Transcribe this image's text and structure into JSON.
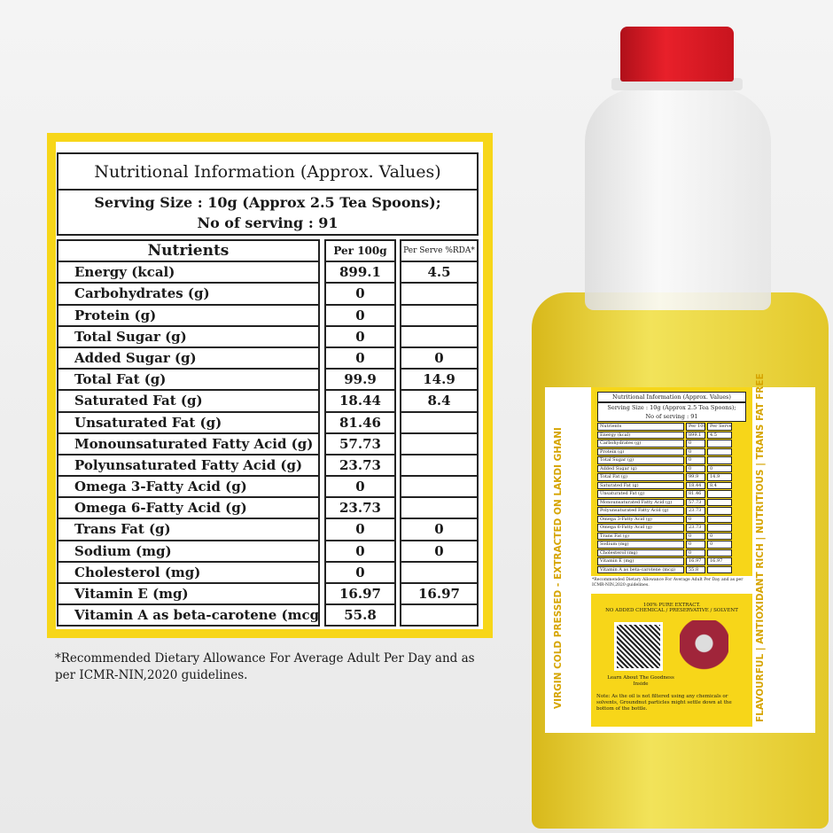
{
  "panel": {
    "title": "Nutritional Information (Approx. Values)",
    "serving_line1": "Serving Size : 10g (Approx 2.5 Tea Spoons);",
    "serving_line2": "No of serving : 91",
    "headers": [
      "Nutrients",
      "Per 100g",
      "Per Serve %RDA*"
    ],
    "rows": [
      [
        "Energy (kcal)",
        "899.1",
        "4.5"
      ],
      [
        "Carbohydrates (g)",
        "0",
        ""
      ],
      [
        "Protein (g)",
        "0",
        ""
      ],
      [
        "Total Sugar (g)",
        "0",
        ""
      ],
      [
        "Added Sugar (g)",
        "0",
        "0"
      ],
      [
        "Total Fat (g)",
        "99.9",
        "14.9"
      ],
      [
        "Saturated Fat (g)",
        "18.44",
        "8.4"
      ],
      [
        "Unsaturated Fat (g)",
        "81.46",
        ""
      ],
      [
        "Monounsaturated Fatty Acid (g)",
        "57.73",
        ""
      ],
      [
        "Polyunsaturated Fatty Acid (g)",
        "23.73",
        ""
      ],
      [
        "Omega 3-Fatty Acid (g)",
        "0",
        ""
      ],
      [
        "Omega 6-Fatty Acid (g)",
        "23.73",
        ""
      ],
      [
        "Trans Fat (g)",
        "0",
        "0"
      ],
      [
        "Sodium (mg)",
        "0",
        "0"
      ],
      [
        "Cholesterol (mg)",
        "0",
        ""
      ],
      [
        "Vitamin E (mg)",
        "16.97",
        "16.97"
      ],
      [
        "Vitamin A as beta-carotene (mcg)",
        "55.8",
        ""
      ]
    ],
    "footnote": "*Recommended Dietary Allowance For Average Adult Per Day and as per ICMR-NIN,2020 guidelines."
  },
  "bottle": {
    "left_side_text": "VIRGIN COLD PRESSED - EXTRACTED ON LAKDI GHANI",
    "right_side_text": "FLAVOURFUL | ANTIOXIDANT RICH | NUTRITIOUS | TRANS FAT FREE",
    "claim_line1": "100% PURE EXTRACT.",
    "claim_line2": "NO ADDED CHEMICAL / PRESERVATIVE / SOLVENT",
    "qr_caption": "Learn About The Goodness Inside",
    "note": "Note: As the oil is not filtered using any chemicals or solvents, Groundnut particles might settle down at the bottom of the bottle."
  },
  "colors": {
    "label_yellow": "#f7d619",
    "cap_red": "#e8202a",
    "side_text": "#d6a400"
  }
}
